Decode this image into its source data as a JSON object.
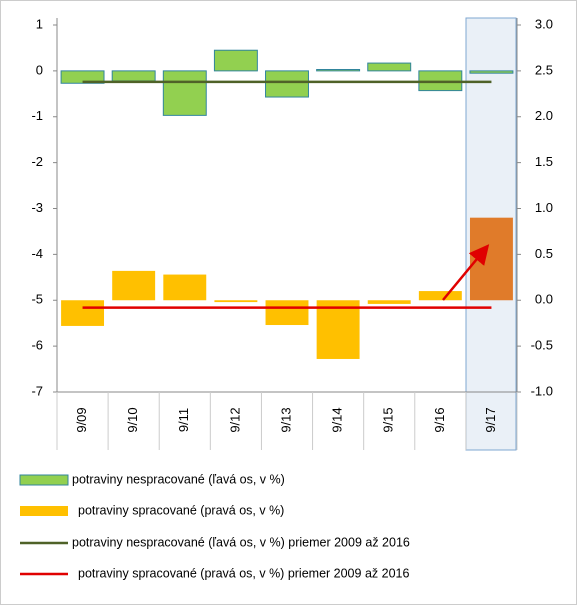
{
  "chart_data": {
    "type": "bar",
    "categories": [
      "9/09",
      "9/10",
      "9/11",
      "9/12",
      "9/13",
      "9/14",
      "9/15",
      "9/16",
      "9/17"
    ],
    "ylim": [
      -7,
      1
    ],
    "yticks": [
      1,
      0,
      -1,
      -2,
      -3,
      -4,
      -5,
      -6,
      -7
    ],
    "y2lim": [
      -1,
      3
    ],
    "y2ticks": [
      {
        "value": 3,
        "label": "3.0"
      },
      {
        "value": 2.5,
        "label": "2.5"
      },
      {
        "value": 2,
        "label": "2.0"
      },
      {
        "value": 1.5,
        "label": "1.5"
      },
      {
        "value": 1,
        "label": "1.0"
      },
      {
        "value": 0.5,
        "label": "0.5"
      },
      {
        "value": 0,
        "label": "0.0"
      },
      {
        "value": -0.5,
        "label": "-0.5"
      },
      {
        "value": -1,
        "label": "-1.0"
      }
    ],
    "series": [
      {
        "name": "potraviny nespracované  (ľavá os, v %)",
        "type": "bar",
        "axis": "y",
        "color": "#92d050",
        "stroke": "#31859c",
        "values": [
          -0.27,
          -0.22,
          -0.97,
          0.45,
          -0.57,
          0.03,
          0.17,
          -0.43,
          -0.05
        ]
      },
      {
        "name": "potraviny spracované  (pravá os, v %)",
        "type": "bar",
        "axis": "y2",
        "color": "#ffc000",
        "colors": [
          "#ffc000",
          "#ffc000",
          "#ffc000",
          "#ffc000",
          "#ffc000",
          "#ffc000",
          "#ffc000",
          "#ffc000",
          "#e07b2a"
        ],
        "values": [
          -0.28,
          0.32,
          0.28,
          -0.02,
          -0.27,
          -0.64,
          -0.04,
          0.1,
          0.9
        ]
      },
      {
        "name": "potraviny nespracované  (ľavá os, v %) priemer 2009 až 2016",
        "type": "line",
        "axis": "y",
        "color": "#4f6228",
        "values": [
          -0.24,
          -0.24,
          -0.24,
          -0.24,
          -0.24,
          -0.24,
          -0.24,
          -0.24,
          -0.24
        ]
      },
      {
        "name": "potraviny spracované  (pravá os, v %) priemer 2009 až 2016",
        "type": "line",
        "axis": "y2",
        "color": "#e00000",
        "values": [
          -0.08,
          -0.08,
          -0.08,
          -0.08,
          -0.08,
          -0.08,
          -0.08,
          -0.08,
          -0.08
        ]
      }
    ]
  }
}
